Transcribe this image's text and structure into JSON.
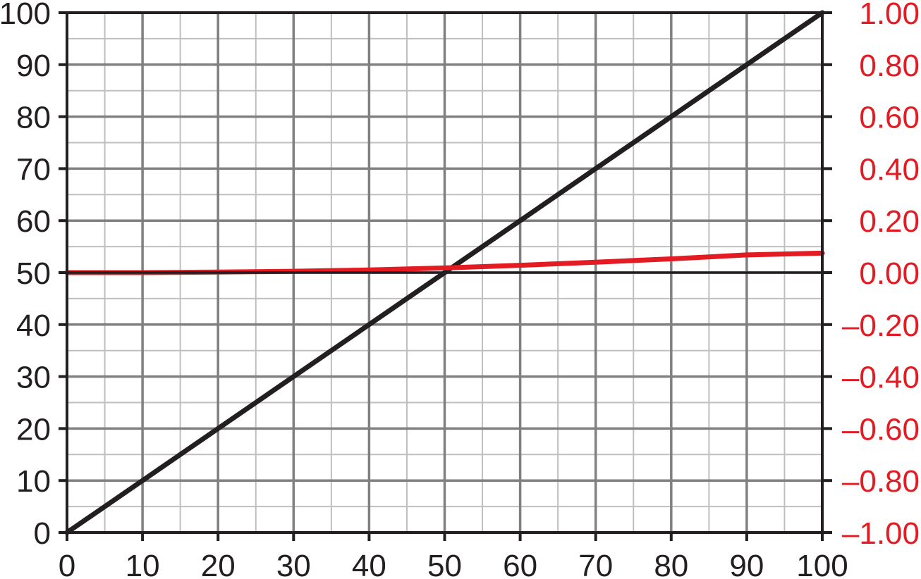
{
  "chart_data": {
    "type": "line",
    "x_ticks": [
      "0",
      "10",
      "20",
      "30",
      "40",
      "50",
      "60",
      "70",
      "80",
      "90",
      "100"
    ],
    "y_left_ticks": [
      "0",
      "10",
      "20",
      "30",
      "40",
      "50",
      "60",
      "70",
      "80",
      "90",
      "100"
    ],
    "y_right_ticks": [
      "–1.00",
      "–0.80",
      "–0.60",
      "–0.40",
      "–0.20",
      "0.00",
      "0.20",
      "0.40",
      "0.60",
      "0.80",
      "1.00"
    ],
    "xlim": [
      0,
      100
    ],
    "ylim_left": [
      0,
      100
    ],
    "ylim_right": [
      -1.0,
      1.0
    ],
    "grid": true,
    "series": [
      {
        "axis": "left",
        "color": "#231f20",
        "x": [
          0,
          100
        ],
        "y": [
          0,
          100
        ]
      },
      {
        "axis": "right",
        "color": "#e31b23",
        "x": [
          0,
          10,
          20,
          30,
          40,
          50,
          60,
          70,
          80,
          90,
          100
        ],
        "y": [
          0.0,
          0.0,
          0.002,
          0.005,
          0.01,
          0.018,
          0.028,
          0.04,
          0.053,
          0.068,
          0.075
        ]
      }
    ],
    "colors": {
      "left_axis_text": "#231f20",
      "right_axis_text": "#e31b23",
      "major_grid": "#808080",
      "minor_grid": "#bfbfbf",
      "frame": "#231f20"
    }
  }
}
